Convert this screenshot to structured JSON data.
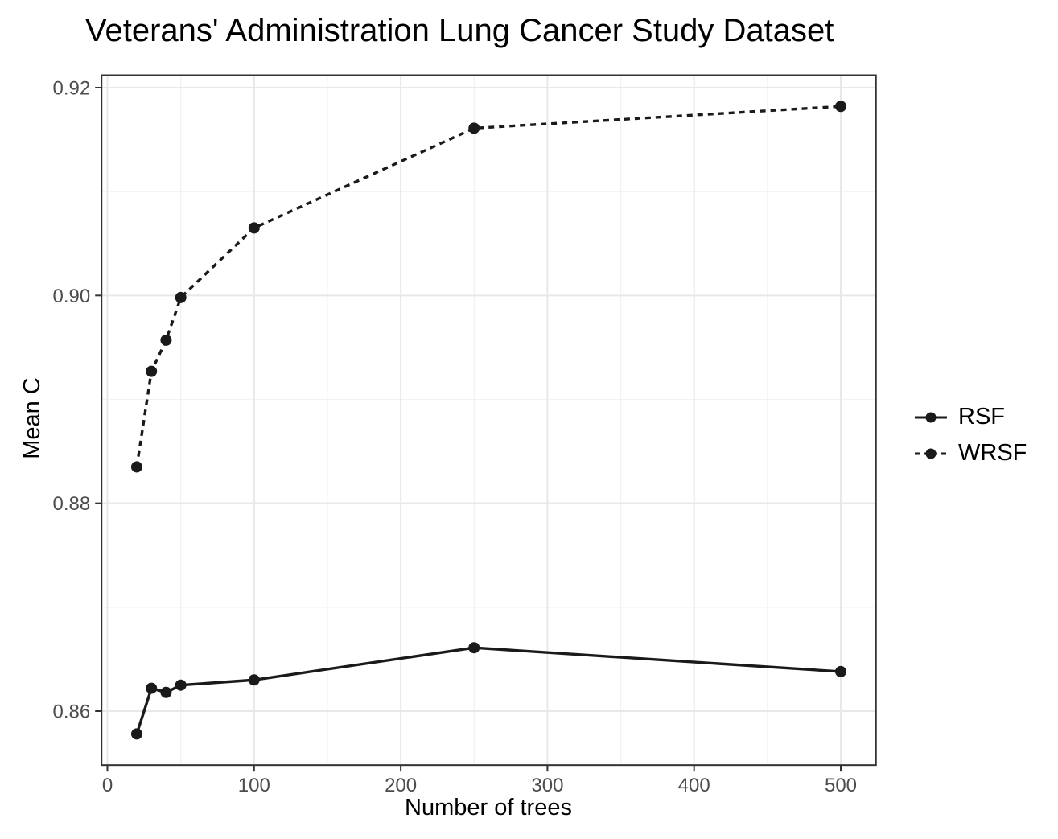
{
  "chart_data": {
    "type": "line",
    "title": "Veterans' Administration Lung Cancer Study Dataset",
    "xlabel": "Number of trees",
    "ylabel": "Mean C",
    "x": [
      20,
      30,
      40,
      50,
      100,
      250,
      500
    ],
    "series": [
      {
        "name": "RSF",
        "linestyle": "solid",
        "marker": "circle",
        "values": [
          0.8578,
          0.8622,
          0.8618,
          0.8625,
          0.863,
          0.8661,
          0.8638
        ]
      },
      {
        "name": "WRSF",
        "linestyle": "dashed",
        "marker": "circle",
        "values": [
          0.8835,
          0.8927,
          0.8957,
          0.8998,
          0.9065,
          0.9161,
          0.9182
        ]
      }
    ],
    "xlim": [
      -4,
      524
    ],
    "ylim": [
      0.8548,
      0.9212
    ],
    "x_ticks": {
      "values": [
        0,
        100,
        200,
        300,
        400,
        500
      ],
      "labels": [
        "0",
        "100",
        "200",
        "300",
        "400",
        "500"
      ]
    },
    "y_ticks": {
      "values": [
        0.86,
        0.88,
        0.9,
        0.92
      ],
      "labels": [
        "0.86",
        "0.88",
        "0.90",
        "0.92"
      ]
    },
    "x_minor_ticks": [
      50,
      150,
      250,
      350,
      450
    ],
    "y_minor_ticks": [
      0.87,
      0.89,
      0.91
    ],
    "grid": true,
    "legend_position": "right",
    "colors": {
      "series": "#1a1a1a",
      "grid_major": "#e8e8e8",
      "grid_minor": "#f2f2f2",
      "panel_border": "#333333",
      "tick_label": "#4d4d4d",
      "title": "#000000"
    }
  }
}
